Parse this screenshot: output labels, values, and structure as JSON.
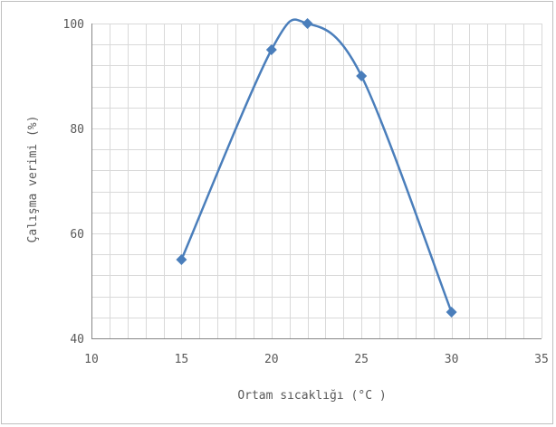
{
  "chart_data": {
    "type": "line",
    "xlabel": "Ortam sıcaklığı (°C )",
    "ylabel": "Çalışma verimi  (%)",
    "xlim": [
      10,
      35
    ],
    "ylim": [
      40,
      100
    ],
    "x_ticks": [
      10,
      15,
      20,
      25,
      30,
      35
    ],
    "y_ticks": [
      40,
      60,
      80,
      100
    ],
    "x_minor_step": 1,
    "y_minor_step": 4,
    "grid": true,
    "smooth": true,
    "marker": "diamond",
    "series": [
      {
        "x": [
          15,
          20,
          22,
          25,
          30
        ],
        "values": [
          55,
          95,
          100,
          90,
          45
        ]
      }
    ],
    "colors": {
      "line": "#4a7ebb",
      "grid": "#d9d9d9",
      "axis": "#868686"
    }
  }
}
